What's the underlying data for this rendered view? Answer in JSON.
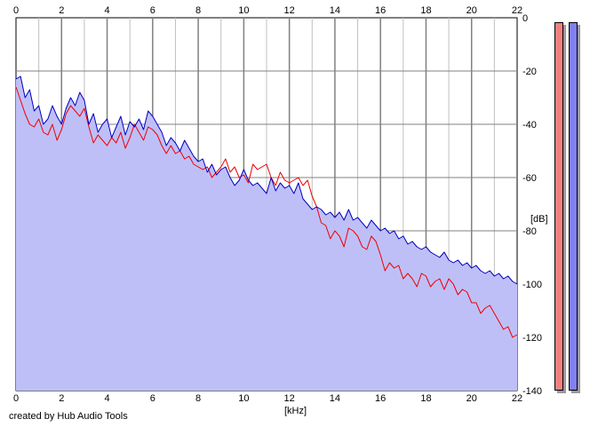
{
  "credit_text": "created by Hub Audio Tools",
  "meters": {
    "left": {
      "color": "#f08080"
    },
    "right": {
      "color": "#8080f0"
    }
  },
  "colors": {
    "background": "#ffffff",
    "plot_background": "#ffffff",
    "grid_major": "#808080",
    "grid_minor": "#c0c0c0",
    "fill": "#bfbff8",
    "left_channel": "#ee0000",
    "right_channel": "#0000c0"
  },
  "chart_data": {
    "type": "line",
    "title": "",
    "xlabel": "[kHz]",
    "ylabel": "[dB]",
    "x_ticks": [
      "0",
      "2",
      "4",
      "6",
      "8",
      "10",
      "12",
      "14",
      "16",
      "18",
      "20",
      "22"
    ],
    "y_ticks": [
      "0",
      "-20",
      "-40",
      "-60",
      "-80",
      "-100",
      "-120",
      "-140"
    ],
    "xlim": [
      0,
      22
    ],
    "ylim": [
      -140,
      0
    ],
    "grid": true,
    "legend": "none",
    "filled_area_series": "right",
    "series": [
      {
        "key": "left",
        "color": "#ee0000",
        "x": [
          0,
          0.2,
          0.4,
          0.6,
          0.8,
          1.0,
          1.2,
          1.4,
          1.6,
          1.8,
          2.0,
          2.2,
          2.4,
          2.6,
          2.8,
          3.0,
          3.2,
          3.4,
          3.6,
          3.8,
          4.0,
          4.2,
          4.4,
          4.6,
          4.8,
          5.0,
          5.2,
          5.4,
          5.6,
          5.8,
          6.0,
          6.2,
          6.4,
          6.6,
          6.8,
          7.0,
          7.2,
          7.4,
          7.6,
          7.8,
          8.0,
          8.2,
          8.4,
          8.6,
          8.8,
          9.0,
          9.2,
          9.4,
          9.6,
          9.8,
          10.0,
          10.2,
          10.4,
          10.6,
          10.8,
          11.0,
          11.2,
          11.4,
          11.6,
          11.8,
          12.0,
          12.2,
          12.4,
          12.6,
          12.8,
          13.0,
          13.2,
          13.4,
          13.6,
          13.8,
          14.0,
          14.2,
          14.4,
          14.6,
          14.8,
          15.0,
          15.2,
          15.4,
          15.6,
          15.8,
          16.0,
          16.2,
          16.4,
          16.6,
          16.8,
          17.0,
          17.2,
          17.4,
          17.6,
          17.8,
          18.0,
          18.2,
          18.4,
          18.6,
          18.8,
          19.0,
          19.2,
          19.4,
          19.6,
          19.8,
          20.0,
          20.2,
          20.4,
          20.6,
          20.8,
          21.0,
          21.2,
          21.4,
          21.6,
          21.8,
          22.0
        ],
        "y": [
          -26,
          -31,
          -36,
          -40,
          -41,
          -38,
          -43,
          -44,
          -40,
          -46,
          -42,
          -36,
          -33,
          -35,
          -37,
          -34,
          -41,
          -47,
          -44,
          -46,
          -48,
          -45,
          -47,
          -43,
          -49,
          -45,
          -40,
          -43,
          -46,
          -41,
          -42,
          -44,
          -48,
          -51,
          -48,
          -51,
          -50,
          -53,
          -52,
          -55,
          -56,
          -57,
          -56,
          -60,
          -58,
          -56,
          -53,
          -58,
          -56,
          -60,
          -59,
          -62,
          -55,
          -57,
          -56,
          -55,
          -60,
          -63,
          -58,
          -61,
          -62,
          -61,
          -60,
          -63,
          -61,
          -67,
          -71,
          -77,
          -78,
          -83,
          -80,
          -82,
          -86,
          -79,
          -80,
          -82,
          -86,
          -87,
          -82,
          -84,
          -89,
          -95,
          -92,
          -94,
          -93,
          -98,
          -96,
          -98,
          -101,
          -96,
          -97,
          -101,
          -99,
          -98,
          -102,
          -98,
          -100,
          -104,
          -102,
          -103,
          -107,
          -107,
          -111,
          -109,
          -108,
          -111,
          -114,
          -117,
          -116,
          -120,
          -119
        ]
      },
      {
        "key": "right",
        "color": "#0000c0",
        "x": [
          0,
          0.2,
          0.4,
          0.6,
          0.8,
          1.0,
          1.2,
          1.4,
          1.6,
          1.8,
          2.0,
          2.2,
          2.4,
          2.6,
          2.8,
          3.0,
          3.2,
          3.4,
          3.6,
          3.8,
          4.0,
          4.2,
          4.4,
          4.6,
          4.8,
          5.0,
          5.2,
          5.4,
          5.6,
          5.8,
          6.0,
          6.2,
          6.4,
          6.6,
          6.8,
          7.0,
          7.2,
          7.4,
          7.6,
          7.8,
          8.0,
          8.2,
          8.4,
          8.6,
          8.8,
          9.0,
          9.2,
          9.4,
          9.6,
          9.8,
          10.0,
          10.2,
          10.4,
          10.6,
          10.8,
          11.0,
          11.2,
          11.4,
          11.6,
          11.8,
          12.0,
          12.2,
          12.4,
          12.6,
          12.8,
          13.0,
          13.2,
          13.4,
          13.6,
          13.8,
          14.0,
          14.2,
          14.4,
          14.6,
          14.8,
          15.0,
          15.2,
          15.4,
          15.6,
          15.8,
          16.0,
          16.2,
          16.4,
          16.6,
          16.8,
          17.0,
          17.2,
          17.4,
          17.6,
          17.8,
          18.0,
          18.2,
          18.4,
          18.6,
          18.8,
          19.0,
          19.2,
          19.4,
          19.6,
          19.8,
          20.0,
          20.2,
          20.4,
          20.6,
          20.8,
          21.0,
          21.2,
          21.4,
          21.6,
          21.8,
          22.0
        ],
        "y": [
          -23,
          -22,
          -30,
          -27,
          -35,
          -33,
          -40,
          -38,
          -33,
          -37,
          -40,
          -34,
          -30,
          -33,
          -28,
          -31,
          -40,
          -36,
          -43,
          -40,
          -38,
          -45,
          -41,
          -37,
          -44,
          -39,
          -41,
          -38,
          -42,
          -35,
          -37,
          -40,
          -43,
          -48,
          -45,
          -47,
          -50,
          -46,
          -49,
          -52,
          -54,
          -53,
          -58,
          -55,
          -59,
          -57,
          -56,
          -60,
          -63,
          -61,
          -57,
          -61,
          -63,
          -62,
          -64,
          -66,
          -60,
          -65,
          -62,
          -64,
          -63,
          -66,
          -62,
          -68,
          -70,
          -72,
          -71,
          -72,
          -74,
          -73,
          -75,
          -73,
          -76,
          -72,
          -76,
          -75,
          -77,
          -79,
          -76,
          -78,
          -80,
          -79,
          -81,
          -80,
          -83,
          -82,
          -85,
          -84,
          -86,
          -87,
          -86,
          -88,
          -89,
          -90,
          -88,
          -91,
          -92,
          -91,
          -93,
          -92,
          -94,
          -93,
          -95,
          -96,
          -95,
          -97,
          -96,
          -98,
          -97,
          -99,
          -100
        ]
      }
    ]
  }
}
